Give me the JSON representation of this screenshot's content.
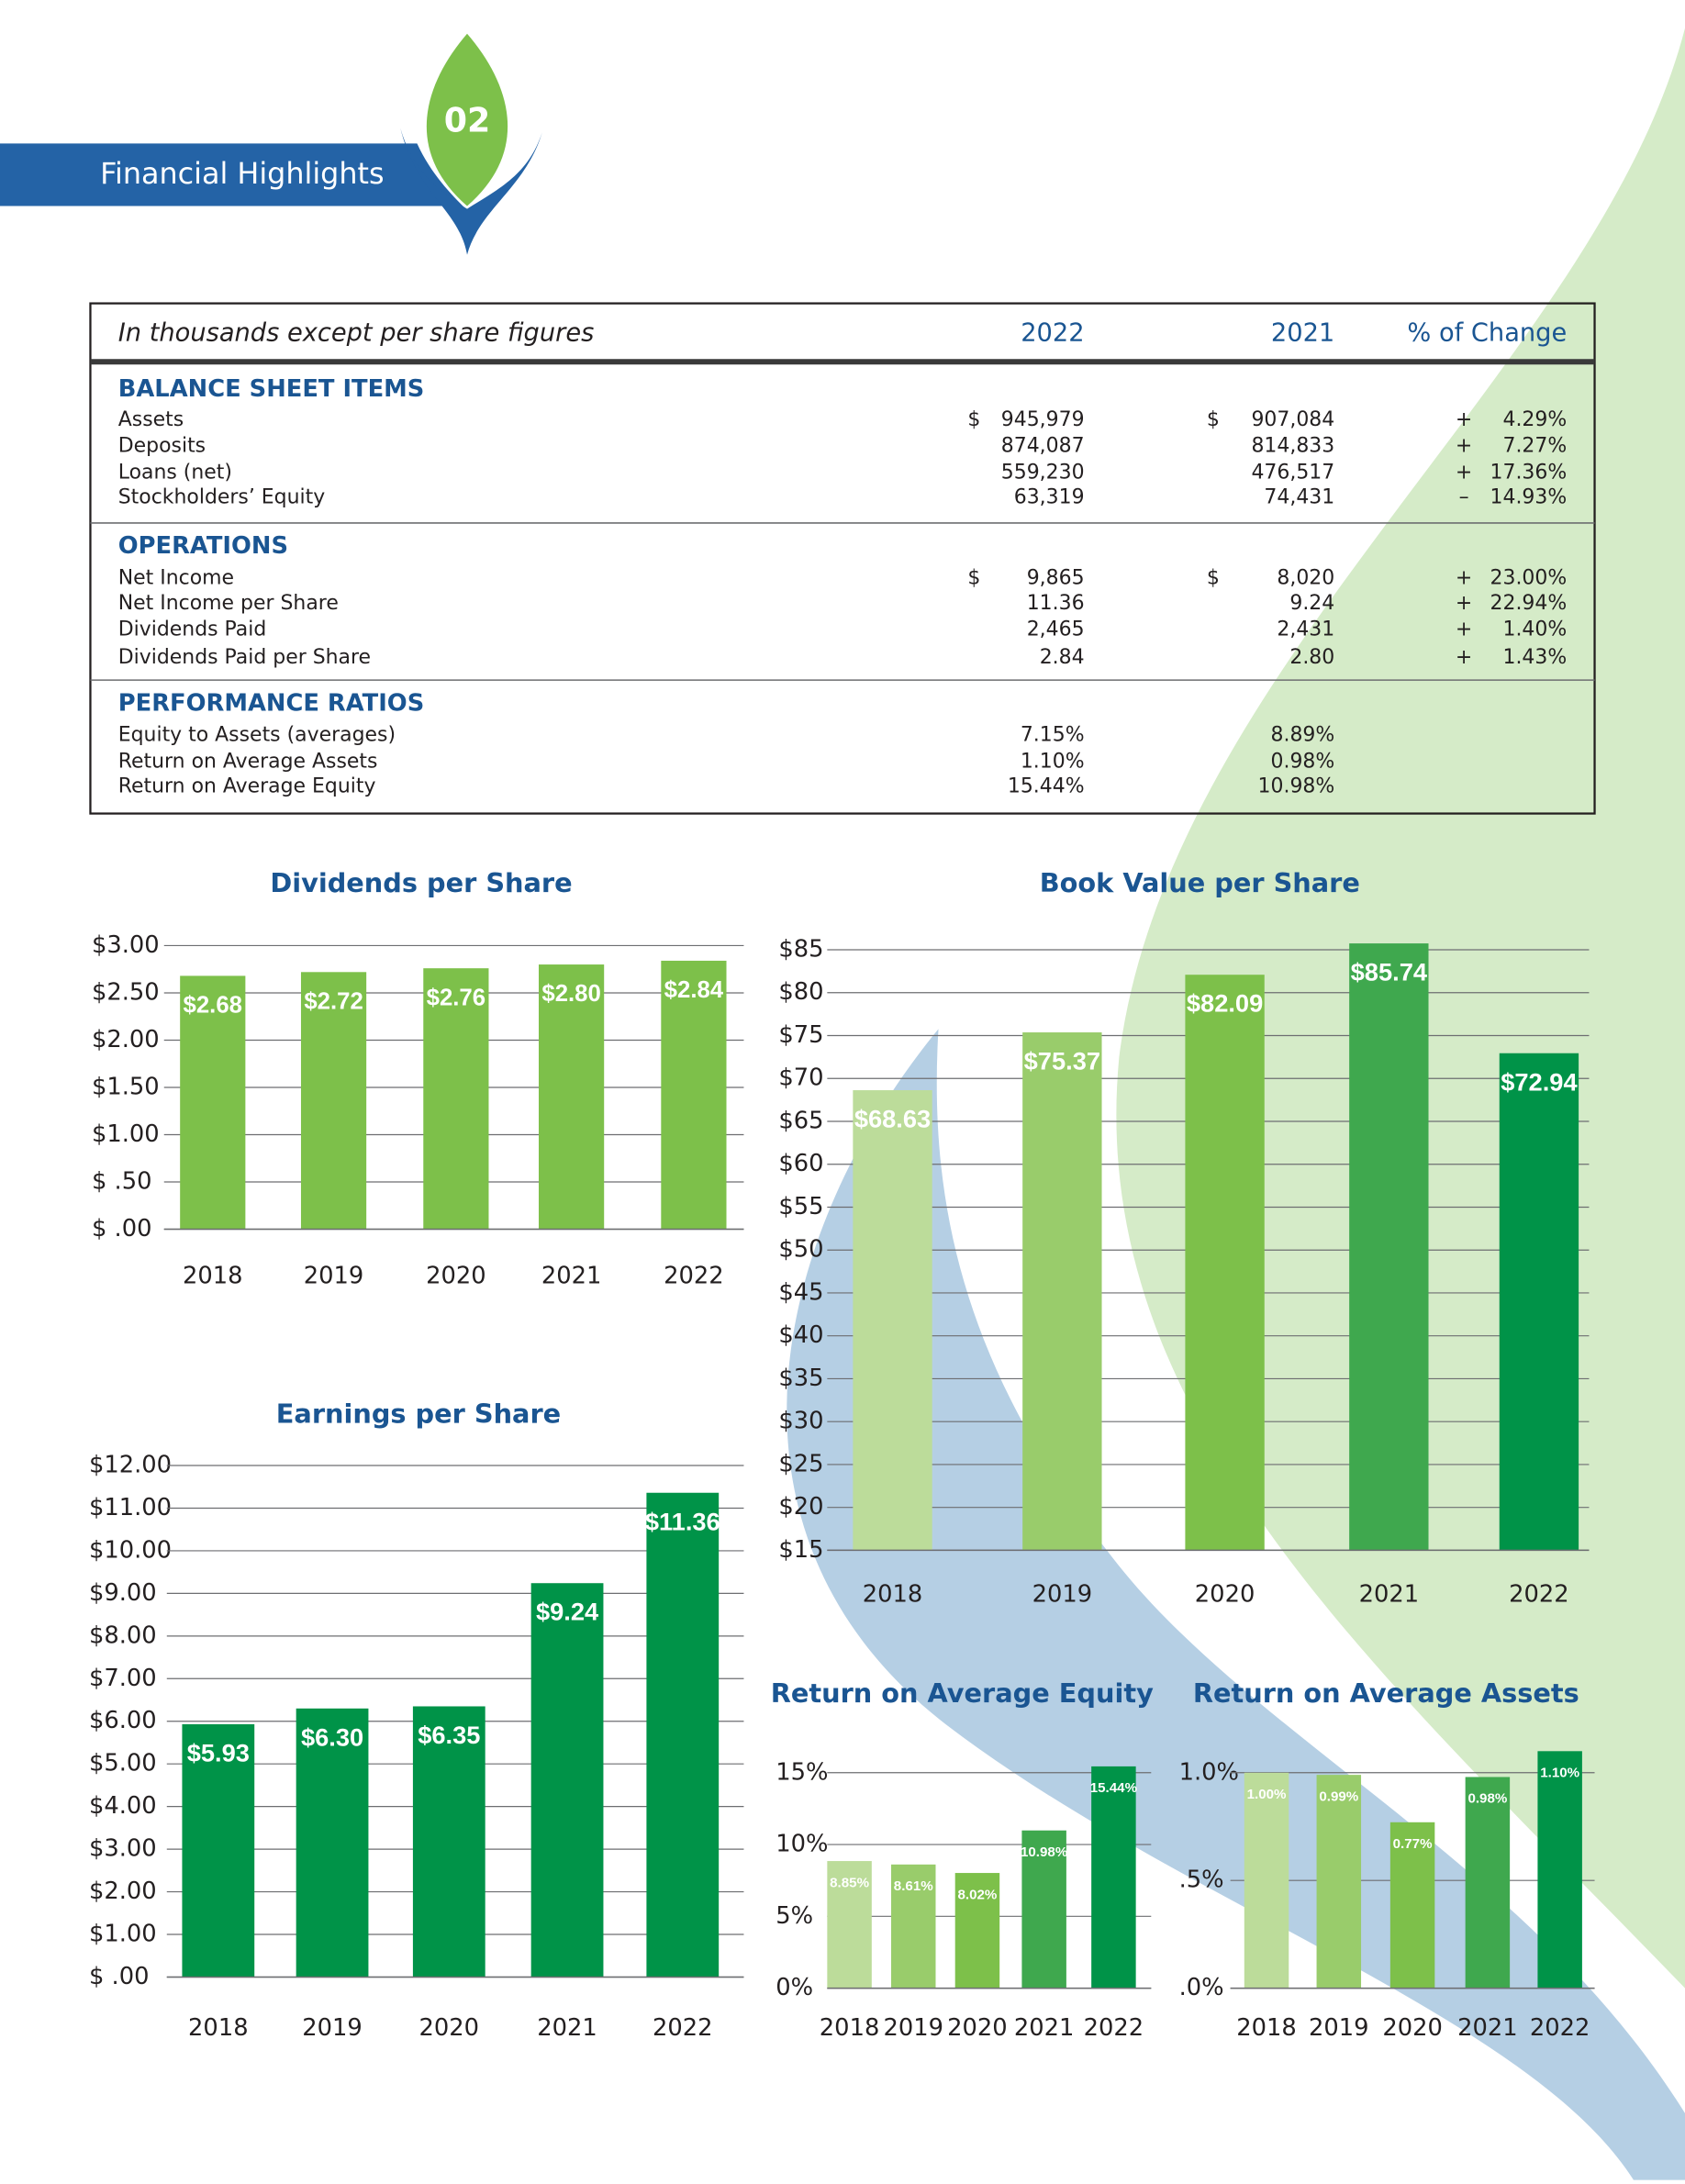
{
  "header": {
    "number": "02",
    "title": "Financial Highlights"
  },
  "table": {
    "columns": [
      "In thousands except per share figures",
      "2022",
      "2021",
      "% of Change"
    ],
    "sections": [
      {
        "title": "BALANCE SHEET ITEMS",
        "rows": [
          {
            "label": "Assets",
            "currency": "$",
            "y2022": "945,979",
            "y2021": "907,084",
            "sign": "+",
            "change": "4.29%"
          },
          {
            "label": "Deposits",
            "y2022": "874,087",
            "y2021": "814,833",
            "sign": "+",
            "change": "7.27%"
          },
          {
            "label": "Loans (net)",
            "y2022": "559,230",
            "y2021": "476,517",
            "sign": "+",
            "change": "17.36%"
          },
          {
            "label": "Stockholders’ Equity",
            "y2022": "63,319",
            "y2021": "74,431",
            "sign": "–",
            "change": "14.93%"
          }
        ]
      },
      {
        "title": "OPERATIONS",
        "rows": [
          {
            "label": "Net Income",
            "currency": "$",
            "y2022": "9,865",
            "y2021": "8,020",
            "sign": "+",
            "change": "23.00%"
          },
          {
            "label": "Net Income per Share",
            "y2022": "11.36",
            "y2021": "9.24",
            "sign": "+",
            "change": "22.94%"
          },
          {
            "label": "Dividends Paid",
            "y2022": "2,465",
            "y2021": "2,431",
            "sign": "+",
            "change": "1.40%"
          },
          {
            "label": "Dividends Paid per Share",
            "y2022": "2.84",
            "y2021": "2.80",
            "sign": "+",
            "change": "1.43%"
          }
        ]
      },
      {
        "title": "PERFORMANCE RATIOS",
        "rows": [
          {
            "label": "Equity to Assets (averages)",
            "y2022": "7.15%",
            "y2021": "8.89%"
          },
          {
            "label": "Return on Average Assets",
            "y2022": "1.10%",
            "y2021": "0.98%"
          },
          {
            "label": "Return on Average Equity",
            "y2022": "15.44%",
            "y2021": "10.98%"
          }
        ]
      }
    ]
  },
  "chart_data": [
    {
      "type": "bar",
      "title": "Dividends per Share",
      "categories": [
        "2018",
        "2019",
        "2020",
        "2021",
        "2022"
      ],
      "values": [
        2.68,
        2.72,
        2.76,
        2.8,
        2.84
      ],
      "value_labels": [
        "$2.68",
        "$2.72",
        "$2.76",
        "$2.80",
        "$2.84"
      ],
      "color": "#7dc04a",
      "ylim": [
        0,
        3
      ],
      "yticks": [
        {
          "value": 0,
          "label": "$ .00"
        },
        {
          "value": 0.5,
          "label": "$ .50"
        },
        {
          "value": 1,
          "label": "$1.00"
        },
        {
          "value": 1.5,
          "label": "$1.50"
        },
        {
          "value": 2,
          "label": "$2.00"
        },
        {
          "value": 2.5,
          "label": "$2.50"
        },
        {
          "value": 3,
          "label": "$3.00"
        }
      ],
      "grid": true
    },
    {
      "type": "bar",
      "title": "Book Value per Share",
      "categories": [
        "2018",
        "2019",
        "2020",
        "2021",
        "2022"
      ],
      "values": [
        68.63,
        75.37,
        82.09,
        85.74,
        72.94
      ],
      "value_labels": [
        "$68.63",
        "$75.37",
        "$82.09",
        "$85.74",
        "$72.94"
      ],
      "colors": [
        "#bcdc9a",
        "#99cc6b",
        "#7dc04a",
        "#3fa84e",
        "#009348"
      ],
      "ylim": [
        15,
        85
      ],
      "yticks": [
        {
          "value": 15,
          "label": "$15"
        },
        {
          "value": 20,
          "label": "$20"
        },
        {
          "value": 25,
          "label": "$25"
        },
        {
          "value": 30,
          "label": "$30"
        },
        {
          "value": 35,
          "label": "$35"
        },
        {
          "value": 40,
          "label": "$40"
        },
        {
          "value": 45,
          "label": "$45"
        },
        {
          "value": 50,
          "label": "$50"
        },
        {
          "value": 55,
          "label": "$55"
        },
        {
          "value": 60,
          "label": "$60"
        },
        {
          "value": 65,
          "label": "$65"
        },
        {
          "value": 70,
          "label": "$70"
        },
        {
          "value": 75,
          "label": "$75"
        },
        {
          "value": 80,
          "label": "$80"
        },
        {
          "value": 85,
          "label": "$85"
        }
      ],
      "grid": true
    },
    {
      "type": "bar",
      "title": "Earnings per Share",
      "categories": [
        "2018",
        "2019",
        "2020",
        "2021",
        "2022"
      ],
      "values": [
        5.93,
        6.3,
        6.35,
        9.24,
        11.36
      ],
      "value_labels": [
        "$5.93",
        "$6.30",
        "$6.35",
        "$9.24",
        "$11.36"
      ],
      "color": "#009348",
      "ylim": [
        0,
        12
      ],
      "yticks": [
        {
          "value": 0,
          "label": "$ .00"
        },
        {
          "value": 1,
          "label": "$1.00"
        },
        {
          "value": 2,
          "label": "$2.00"
        },
        {
          "value": 3,
          "label": "$3.00"
        },
        {
          "value": 4,
          "label": "$4.00"
        },
        {
          "value": 5,
          "label": "$5.00"
        },
        {
          "value": 6,
          "label": "$6.00"
        },
        {
          "value": 7,
          "label": "$7.00"
        },
        {
          "value": 8,
          "label": "$8.00"
        },
        {
          "value": 9,
          "label": "$9.00"
        },
        {
          "value": 10,
          "label": "$10.00"
        },
        {
          "value": 11,
          "label": "$11.00"
        },
        {
          "value": 12,
          "label": "$12.00"
        }
      ],
      "grid": true
    },
    {
      "type": "bar",
      "title": "Return on Average Equity",
      "categories": [
        "2018",
        "2019",
        "2020",
        "2021",
        "2022"
      ],
      "values": [
        8.85,
        8.61,
        8.02,
        10.98,
        15.44
      ],
      "value_labels": [
        "8.85%",
        "8.61%",
        "8.02%",
        "10.98%",
        "15.44%"
      ],
      "colors": [
        "#bcdc9a",
        "#99cc6b",
        "#7dc04a",
        "#3fa84e",
        "#009348"
      ],
      "ylim": [
        0,
        15
      ],
      "yticks": [
        {
          "value": 0,
          "label": "0%"
        },
        {
          "value": 5,
          "label": "5%"
        },
        {
          "value": 10,
          "label": "10%"
        },
        {
          "value": 15,
          "label": "15%"
        }
      ],
      "grid": true
    },
    {
      "type": "bar",
      "title": "Return on Average Assets",
      "categories": [
        "2018",
        "2019",
        "2020",
        "2021",
        "2022"
      ],
      "values": [
        1.0,
        0.99,
        0.77,
        0.98,
        1.1
      ],
      "value_labels": [
        "1.00%",
        "0.99%",
        "0.77%",
        "0.98%",
        "1.10%"
      ],
      "colors": [
        "#bcdc9a",
        "#99cc6b",
        "#7dc04a",
        "#3fa84e",
        "#009348"
      ],
      "ylim": [
        0,
        1
      ],
      "yticks": [
        {
          "value": 0,
          "label": ".0%"
        },
        {
          "value": 0.5,
          "label": ".5%"
        },
        {
          "value": 1,
          "label": "1.0%"
        }
      ],
      "grid": true
    }
  ]
}
